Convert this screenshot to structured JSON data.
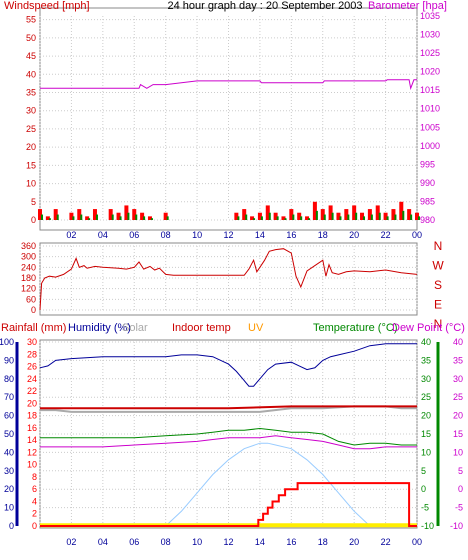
{
  "colors": {
    "windspeed": "#cc0000",
    "barometer": "#cc00cc",
    "direction": "#cc0000",
    "rain": "#ff0000",
    "humidity": "#000099",
    "solar": "#aaaaaa",
    "indoor": "#cc0000",
    "uv": "#ff9900",
    "temperature": "#008800",
    "dewpoint": "#cc00cc",
    "solar_area": "#99ccff",
    "uv_area": "#ffee00",
    "gust": "#ff0000",
    "avgwind": "#008800"
  },
  "chart_data": [
    {
      "type": "line",
      "title": "24 hour graph day : 20 September 2003",
      "ylabel_left": "Windspeed [mph]",
      "ylabel_right": "Barometer [hpa]",
      "x_ticks": [
        "02",
        "04",
        "06",
        "08",
        "10",
        "12",
        "14",
        "16",
        "18",
        "20",
        "22",
        "00"
      ],
      "y_left_ticks": [
        "55",
        "50",
        "45",
        "40",
        "35",
        "30",
        "25",
        "20",
        "15",
        "10",
        "5",
        "0"
      ],
      "y_right_ticks": [
        "1035",
        "1030",
        "1025",
        "1020",
        "1015",
        "1010",
        "1005",
        "1000",
        "995",
        "990",
        "985",
        "980"
      ],
      "ylim_left": [
        0,
        56
      ],
      "ylim_right": [
        980,
        1035
      ],
      "xlim": [
        0,
        24
      ],
      "series": [
        {
          "name": "Barometer [hpa]",
          "axis": "right",
          "x": [
            0,
            6.3,
            6.4,
            6.8,
            7.2,
            7.5,
            8.0,
            10.0,
            14.0,
            14.1,
            18.0,
            18.1,
            22.0,
            22.1,
            23.5,
            23.6,
            23.8,
            23.9,
            24
          ],
          "y": [
            1015.5,
            1015.5,
            1016.5,
            1015.5,
            1016.5,
            1016.5,
            1016.5,
            1017.5,
            1017.5,
            1017,
            1017,
            1017.5,
            1017.5,
            1017.8,
            1017.8,
            1015.5,
            1017.8,
            1017.8,
            1017.8
          ]
        },
        {
          "name": "Windspeed [mph]",
          "axis": "left",
          "x": [
            0,
            0.5,
            1,
            1.5,
            2,
            2.5,
            3,
            3.5,
            4,
            4.5,
            5,
            5.5,
            6,
            6.5,
            7,
            7.5,
            8,
            8.5,
            9,
            12,
            12.5,
            13,
            13.5,
            14,
            14.5,
            15,
            15.5,
            16,
            16.5,
            17,
            17.5,
            18,
            18.5,
            19,
            19.5,
            20,
            20.5,
            21,
            21.5,
            22,
            22.5,
            23,
            23.5,
            24
          ],
          "y": [
            3,
            1,
            3,
            0,
            2,
            3,
            1,
            3,
            0,
            3,
            2,
            4,
            3,
            2,
            1,
            0,
            2,
            0,
            0,
            0,
            2,
            3,
            1,
            2,
            4,
            2,
            1,
            3,
            2,
            1,
            5,
            3,
            4,
            2,
            3,
            4,
            2,
            3,
            4,
            2,
            3,
            5,
            3,
            2
          ]
        }
      ]
    },
    {
      "type": "line",
      "title": "",
      "y_left_ticks": [
        "360",
        "300",
        "240",
        "180",
        "120",
        "60",
        "0"
      ],
      "y_right_labels": [
        "N",
        "W",
        "S",
        "E",
        "N"
      ],
      "ylim": [
        0,
        360
      ],
      "xlim": [
        0,
        24
      ],
      "series": [
        {
          "name": "",
          "x": [
            0,
            0.1,
            0.3,
            0.6,
            1,
            1.5,
            2,
            2.3,
            2.5,
            2.8,
            3,
            3.5,
            4,
            5,
            5.5,
            6,
            6.3,
            6.6,
            7,
            7.3,
            7.6,
            8,
            8.5,
            9,
            10,
            11,
            12,
            13,
            13.3,
            13.6,
            13.8,
            14,
            14.3,
            14.6,
            15,
            15.5,
            16,
            16.3,
            16.6,
            17,
            17.5,
            18,
            18.2,
            18.4,
            18.6,
            19,
            19.5,
            20,
            21,
            22,
            23,
            24
          ],
          "y": [
            0,
            150,
            180,
            190,
            185,
            200,
            230,
            290,
            240,
            250,
            235,
            245,
            240,
            235,
            230,
            240,
            270,
            230,
            245,
            225,
            235,
            200,
            195,
            195,
            195,
            195,
            195,
            195,
            230,
            280,
            215,
            240,
            280,
            330,
            340,
            345,
            320,
            190,
            130,
            220,
            250,
            280,
            190,
            255,
            210,
            200,
            215,
            220,
            215,
            225,
            210,
            200
          ]
        }
      ]
    },
    {
      "type": "line",
      "title": "",
      "legend": [
        "Rainfall (mm)",
        "Humidity (%)",
        "Solar",
        "Indoor temp",
        "UV",
        "Temperature (°C)",
        "Dew Point (°C)"
      ],
      "y_humidity_ticks": [
        "100",
        "90",
        "80",
        "70",
        "60",
        "50",
        "40",
        "30",
        "20",
        "10",
        "0"
      ],
      "y_rain_ticks": [
        "30",
        "28",
        "26",
        "24",
        "22",
        "20",
        "18",
        "16",
        "14",
        "12",
        "10",
        "8",
        "6",
        "4",
        "2",
        "0"
      ],
      "y_temp_ticks": [
        "40",
        "35",
        "30",
        "25",
        "20",
        "15",
        "10",
        "5",
        "0",
        "-5",
        "-10"
      ],
      "y_dew_ticks": [
        "40",
        "35",
        "30",
        "25",
        "20",
        "15",
        "10",
        "5",
        "0",
        "-5",
        "-10"
      ],
      "ylim_humidity": [
        0,
        100
      ],
      "ylim_rain": [
        0,
        30
      ],
      "ylim_temp": [
        -10,
        40
      ],
      "xlim": [
        0,
        24
      ],
      "series": [
        {
          "name": "Humidity (%)",
          "axis": "humidity",
          "x": [
            0,
            0.5,
            1,
            2,
            4,
            6,
            8,
            9,
            10,
            11,
            12,
            12.5,
            13,
            13.3,
            13.6,
            14,
            14.5,
            15,
            16,
            16.5,
            17,
            17.5,
            18,
            18.5,
            19,
            20,
            21,
            22,
            23,
            24
          ],
          "y": [
            86,
            87,
            90,
            91,
            92,
            92,
            92,
            93,
            93,
            92,
            88,
            84,
            79,
            76,
            76,
            80,
            85,
            88,
            89,
            87,
            85,
            86,
            90,
            92,
            93,
            95,
            98,
            99,
            99,
            99
          ]
        },
        {
          "name": "Solar",
          "axis": "humidity",
          "x": [
            0,
            1,
            2,
            4,
            8,
            12,
            14,
            16,
            18,
            20,
            22,
            23,
            24
          ],
          "y": [
            63,
            63,
            62,
            62,
            62,
            62,
            62,
            64,
            64,
            65,
            65,
            64,
            64
          ]
        },
        {
          "name": "Indoor temp",
          "axis": "temp",
          "x": [
            0,
            1,
            4,
            8,
            12,
            16,
            20,
            24
          ],
          "y": [
            22,
            22,
            22,
            22,
            22,
            22.5,
            22.5,
            22.5
          ]
        },
        {
          "name": "Temperature (°C)",
          "axis": "temp",
          "x": [
            0,
            2,
            4,
            6,
            8,
            10,
            11,
            12,
            13,
            14,
            15,
            16,
            17,
            18,
            19,
            20,
            21,
            22,
            23,
            24
          ],
          "y": [
            14,
            14,
            14,
            14,
            14.5,
            15,
            15.5,
            16,
            16,
            16.5,
            16,
            15.5,
            15.5,
            15,
            13,
            12,
            12.5,
            12.5,
            12,
            12
          ]
        },
        {
          "name": "Dew Point (°C)",
          "axis": "temp",
          "x": [
            0,
            2,
            4,
            6,
            8,
            10,
            11,
            12,
            13,
            14,
            15,
            16,
            17,
            18,
            19,
            20,
            21,
            22,
            23,
            24
          ],
          "y": [
            11.5,
            11.5,
            11.5,
            12,
            12.5,
            13,
            13.5,
            14,
            14,
            14,
            14.5,
            14,
            13.5,
            13,
            12,
            11,
            11,
            11.5,
            11.5,
            11.5
          ]
        },
        {
          "name": "Solar radiation",
          "axis": "temp",
          "x": [
            0,
            8,
            9,
            10,
            11,
            12,
            13,
            14,
            14.5,
            15,
            16,
            17,
            18,
            19,
            20,
            21,
            24
          ],
          "y": [
            -10,
            -10,
            -6,
            -1,
            4,
            8,
            11,
            12.5,
            12.5,
            12,
            11,
            8,
            4,
            -1,
            -6,
            -10,
            -10
          ]
        },
        {
          "name": "UV",
          "axis": "temp",
          "x": [
            0,
            24
          ],
          "y": [
            -9.8,
            -9.8
          ]
        },
        {
          "name": "Rainfall (mm)",
          "axis": "rain",
          "x": [
            0,
            13.9,
            13.9,
            14.2,
            14.2,
            14.5,
            14.5,
            14.8,
            14.8,
            15.2,
            15.2,
            15.6,
            15.6,
            16.4,
            16.4,
            17.2,
            17.2,
            23.5,
            23.5,
            24
          ],
          "y": [
            0,
            0,
            1,
            1,
            2,
            2,
            3,
            3,
            4,
            4,
            5,
            5,
            6,
            6,
            7,
            7,
            7,
            7,
            0,
            0
          ]
        }
      ]
    }
  ]
}
